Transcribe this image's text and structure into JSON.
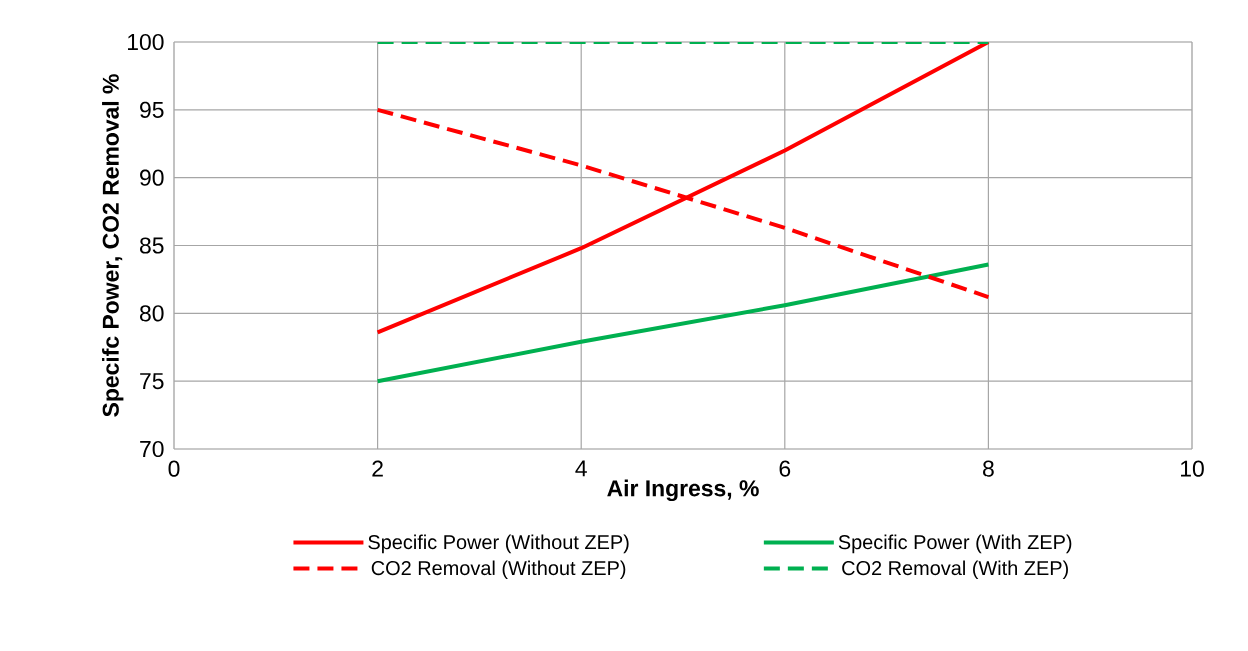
{
  "chart_data": {
    "type": "line",
    "xlabel": "Air Ingress, %",
    "ylabel": "Specifc Power, CO2 Removal %",
    "x": [
      2,
      4,
      6,
      8
    ],
    "series": [
      {
        "name": "Specific Power (Without ZEP)",
        "color": "#ff0000",
        "line_style": "solid",
        "values": [
          78.6,
          84.8,
          92,
          100
        ]
      },
      {
        "name": "Specific Power (With ZEP)",
        "color": "#00b050",
        "line_style": "solid",
        "values": [
          75,
          77.9,
          80.6,
          83.6
        ]
      },
      {
        "name": "CO2 Removal (Without ZEP)",
        "color": "#ff0000",
        "line_style": "dashed",
        "values": [
          95,
          90.9,
          86.3,
          81.2
        ]
      },
      {
        "name": "CO2 Removal (With ZEP)",
        "color": "#00b050",
        "line_style": "dashed",
        "values": [
          100,
          100,
          100,
          100
        ]
      }
    ],
    "xlim": [
      0,
      10
    ],
    "xticks": [
      0,
      2,
      4,
      6,
      8,
      10
    ],
    "ylim": [
      70,
      100
    ],
    "yticks": [
      70,
      75,
      80,
      85,
      90,
      95,
      100
    ],
    "grid": true,
    "legend": "bottom",
    "marker": "none"
  }
}
